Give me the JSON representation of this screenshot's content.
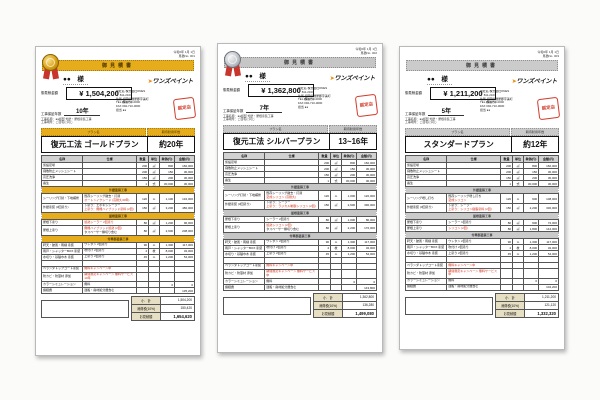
{
  "columns": [
    "名称",
    "仕様",
    "数量",
    "単位",
    "単価(円)",
    "金額(円)"
  ],
  "documents": [
    {
      "accent": "#e6ac1c",
      "accent_fg": "#4d3a05",
      "medal": "gold",
      "date_line": "令和6年 1月 1日",
      "no_line": "見積No. 001",
      "title": "御見積書",
      "customer": "●●　様",
      "logo_arrow": "➤",
      "logo": "ワンズペイント",
      "amount_label": "御見積金額",
      "amount": "¥ 1,504,200",
      "amount_note": "(税抜き)",
      "warranty_label": "工事保証年数",
      "warranty": "10年",
      "meta1": "工事名称：●●様邸 外壁・屋根塗装工事",
      "meta2": "工事場所：ご自宅に同じ",
      "company": [
        "会社名 株式会社ONES",
        "〒 811-2101",
        "住所 福岡県糟屋郡宇美町",
        "TEL 092-710-0000",
        "FAX 092-710-0000",
        "担当 ●●"
      ],
      "seal": "認定店",
      "plan_label": "プラン名",
      "life_label": "期待耐用年数",
      "plan": "復元工法 ゴールドプラン",
      "life": "約20年",
      "rows": [
        {
          "type": "item",
          "name": "仮設足場",
          "spec": [],
          "qty": "200",
          "unit": "㎡",
          "price": "800",
          "amt": "160,000"
        },
        {
          "type": "item",
          "name": "飛散防止メッシュシート",
          "spec": [],
          "qty": "200",
          "unit": "㎡",
          "price": "150",
          "amt": "30,000"
        },
        {
          "type": "item",
          "name": "高圧洗浄",
          "spec": [],
          "qty": "150",
          "unit": "㎡",
          "price": "200",
          "amt": "30,000"
        },
        {
          "type": "item",
          "name": "養生",
          "spec": [],
          "qty": "1",
          "unit": "式",
          "price": "30,000",
          "amt": "30,000"
        },
        {
          "type": "section",
          "name": "外壁塗装工事"
        },
        {
          "type": "item",
          "name": "シーリング打替・下地補修",
          "spec": [
            {
              "t": "既存シーリング撤去・打替",
              "r": false
            },
            {
              "t": "オートンイクシード (高耐久30年)",
              "r": true
            }
          ],
          "qty": "120",
          "unit": "m",
          "price": "1,100",
          "amt": "132,000"
        },
        {
          "type": "item",
          "name": "外壁塗装 (3回塗り)",
          "spec": [
            {
              "t": "下塗り：エポキシシーラー",
              "r": false
            },
            {
              "t": "上塗り：無機ハイブリッド塗料 (2回)",
              "r": true
            }
          ],
          "qty": "150",
          "unit": "㎡",
          "price": "3,200",
          "amt": "480,000"
        },
        {
          "type": "section",
          "name": "屋根塗装工事"
        },
        {
          "type": "item",
          "name": "屋根下塗り",
          "spec": [
            {
              "t": "遮熱シーラー 2回塗り",
              "r": true
            }
          ],
          "qty": "80",
          "unit": "㎡",
          "price": "1,200",
          "amt": "96,000"
        },
        {
          "type": "item",
          "name": "屋根上塗り",
          "spec": [
            {
              "t": "無機ハイブリッド遮熱 (2回)",
              "r": true
            },
            {
              "t": "タスペーサー縁切り含む",
              "r": false
            }
          ],
          "qty": "80",
          "unit": "㎡",
          "price": "2,600",
          "amt": "208,000"
        },
        {
          "type": "section",
          "name": "付帯部塗装工事"
        },
        {
          "type": "item",
          "name": "軒天・破風・雨樋 塗装",
          "spec": [
            {
              "t": "ウレタン 2回塗り",
              "r": false
            }
          ],
          "qty": "90",
          "unit": "m",
          "price": "1,300",
          "amt": "117,000"
        },
        {
          "type": "item",
          "name": "雨戸・シャッターBOX 塗装",
          "spec": [
            {
              "t": "吹付け 2回塗り",
              "r": false
            }
          ],
          "qty": "4",
          "unit": "枚",
          "price": "8,000",
          "amt": "32,000"
        },
        {
          "type": "item",
          "name": "水切り・基礎巾木 塗装",
          "spec": [
            {
              "t": "上塗り 2回塗り",
              "r": false
            }
          ],
          "qty": "45",
          "unit": "m",
          "price": "1,200",
          "amt": "54,000"
        },
        {
          "type": "blank"
        },
        {
          "type": "item",
          "name": "ベランダトップコート塗装",
          "spec": [
            {
              "t": "無料キャンペーン中",
              "r": true
            }
          ],
          "qty": "",
          "unit": "",
          "price": "",
          "amt": ""
        },
        {
          "type": "item",
          "name": "防カビ・防藻材 添加",
          "spec": [
            {
              "t": "期間限定キャンペーン 無料サービス 10年",
              "r": true
            }
          ],
          "qty": "",
          "unit": "",
          "price": "",
          "amt": ""
        },
        {
          "type": "item",
          "name": "カラーシミュレーション",
          "spec": [
            {
              "t": "無料",
              "r": false
            }
          ],
          "qty": "",
          "unit": "",
          "price": "0",
          "amt": "0"
        },
        {
          "type": "item",
          "name": "諸経費",
          "spec": [
            {
              "t": "運搬・廃材処分費含む",
              "r": false
            }
          ],
          "qty": "",
          "unit": "",
          "price": "",
          "amt": "135,200"
        }
      ],
      "totals": {
        "sub_label": "小　計",
        "sub": "1,504,200",
        "tax_label": "消費税(10%)",
        "tax": "150,420",
        "total_label": "お見積額",
        "total": "1,654,620"
      }
    },
    {
      "accent": "#c6c6c6",
      "accent_fg": "#3d3d3d",
      "medal": "silver",
      "date_line": "令和6年 1月 1日",
      "no_line": "見積No. 002",
      "title": "御見積書",
      "customer": "●●　様",
      "logo_arrow": "➤",
      "logo": "ワンズペイント",
      "amount_label": "御見積金額",
      "amount": "¥ 1,362,800",
      "amount_note": "(税抜き)",
      "warranty_label": "工事保証年数",
      "warranty": "7年",
      "meta1": "工事名称：●●様邸 外壁・屋根塗装工事",
      "meta2": "工事場所：ご自宅に同じ",
      "company": [
        "会社名 株式会社ONES",
        "〒 811-2101",
        "住所 福岡県糟屋郡宇美町",
        "TEL 092-710-0000",
        "FAX 092-710-0000",
        "担当 ●●"
      ],
      "seal": "認定店",
      "plan_label": "プラン名",
      "life_label": "期待耐用年数",
      "plan": "復元工法 シルバープラン",
      "life": "13~16年",
      "rows": [
        {
          "type": "item",
          "name": "仮設足場",
          "spec": [],
          "qty": "200",
          "unit": "㎡",
          "price": "800",
          "amt": "160,000"
        },
        {
          "type": "item",
          "name": "飛散防止メッシュシート",
          "spec": [],
          "qty": "200",
          "unit": "㎡",
          "price": "150",
          "amt": "30,000"
        },
        {
          "type": "item",
          "name": "高圧洗浄",
          "spec": [],
          "qty": "150",
          "unit": "㎡",
          "price": "200",
          "amt": "30,000"
        },
        {
          "type": "item",
          "name": "養生",
          "spec": [],
          "qty": "1",
          "unit": "式",
          "price": "30,000",
          "amt": "30,000"
        },
        {
          "type": "section",
          "name": "外壁塗装工事"
        },
        {
          "type": "item",
          "name": "シーリング打替・下地補修",
          "spec": [
            {
              "t": "既存シーリング撤去・打替",
              "r": false
            },
            {
              "t": "変成シリコン (高耐久)",
              "r": true
            }
          ],
          "qty": "120",
          "unit": "m",
          "price": "1,000",
          "amt": "120,000"
        },
        {
          "type": "item",
          "name": "外壁塗装 (3回塗り)",
          "spec": [
            {
              "t": "下塗り：シーラー",
              "r": false
            },
            {
              "t": "上塗り：ラジカル制御シリコン (2回)",
              "r": true
            }
          ],
          "qty": "150",
          "unit": "㎡",
          "price": "2,600",
          "amt": "390,000"
        },
        {
          "type": "section",
          "name": "屋根塗装工事"
        },
        {
          "type": "item",
          "name": "屋根下塗り",
          "spec": [
            {
              "t": "シーラー 2回塗り",
              "r": false
            }
          ],
          "qty": "80",
          "unit": "㎡",
          "price": "1,000",
          "amt": "80,000"
        },
        {
          "type": "item",
          "name": "屋根上塗り",
          "spec": [
            {
              "t": "遮熱シリコン (2回)",
              "r": true
            },
            {
              "t": "タスペーサー縁切り含む",
              "r": false
            }
          ],
          "qty": "80",
          "unit": "㎡",
          "price": "2,200",
          "amt": "176,000"
        },
        {
          "type": "section",
          "name": "付帯部塗装工事"
        },
        {
          "type": "item",
          "name": "軒天・破風・雨樋 塗装",
          "spec": [
            {
              "t": "ウレタン 2回塗り",
              "r": false
            }
          ],
          "qty": "90",
          "unit": "m",
          "price": "1,300",
          "amt": "117,000"
        },
        {
          "type": "item",
          "name": "雨戸・シャッターBOX 塗装",
          "spec": [
            {
              "t": "吹付け 2回塗り",
              "r": false
            }
          ],
          "qty": "4",
          "unit": "枚",
          "price": "8,000",
          "amt": "32,000"
        },
        {
          "type": "item",
          "name": "水切り・基礎巾木 塗装",
          "spec": [
            {
              "t": "上塗り 2回塗り",
              "r": false
            }
          ],
          "qty": "45",
          "unit": "m",
          "price": "1,200",
          "amt": "54,000"
        },
        {
          "type": "blank"
        },
        {
          "type": "item",
          "name": "ベランダトップコート塗装",
          "spec": [
            {
              "t": "無料キャンペーン中",
              "r": true
            }
          ],
          "qty": "",
          "unit": "",
          "price": "",
          "amt": ""
        },
        {
          "type": "item",
          "name": "防カビ・防藻材 添加",
          "spec": [
            {
              "t": "期間限定キャンペーン 無料サービス中",
              "r": true
            }
          ],
          "qty": "",
          "unit": "",
          "price": "",
          "amt": ""
        },
        {
          "type": "item",
          "name": "カラーシミュレーション",
          "spec": [
            {
              "t": "無料",
              "r": false
            }
          ],
          "qty": "",
          "unit": "",
          "price": "0",
          "amt": "0"
        },
        {
          "type": "item",
          "name": "諸経費",
          "spec": [
            {
              "t": "運搬・廃材処分費含む",
              "r": false
            }
          ],
          "qty": "",
          "unit": "",
          "price": "",
          "amt": "143,800"
        }
      ],
      "totals": {
        "sub_label": "小　計",
        "sub": "1,362,800",
        "tax_label": "消費税(10%)",
        "tax": "136,280",
        "total_label": "お見積額",
        "total": "1,499,080"
      }
    },
    {
      "accent": "#cbcbcb",
      "accent_fg": "#3d3d3d",
      "medal": "none",
      "date_line": "令和6年 1月 1日",
      "no_line": "見積No. 003",
      "title": "御見積書",
      "customer": "●●　様",
      "logo_arrow": "➤",
      "logo": "ワンズペイント",
      "amount_label": "御見積金額",
      "amount": "¥ 1,211,200",
      "amount_note": "(税抜き)",
      "warranty_label": "工事保証年数",
      "warranty": "5年",
      "meta1": "工事名称：●●様邸 外壁・屋根塗装工事",
      "meta2": "工事場所：ご自宅に同じ",
      "company": [
        "会社名 株式会社ONES",
        "〒 811-2101",
        "住所 福岡県糟屋郡宇美町",
        "TEL 092-710-0000",
        "FAX 092-710-0000",
        "担当 ●●"
      ],
      "seal": "認定店",
      "plan_label": "プラン名",
      "life_label": "期待耐用年数",
      "plan": "スタンダードプラン",
      "life": "約12年",
      "rows": [
        {
          "type": "item",
          "name": "仮設足場",
          "spec": [],
          "qty": "200",
          "unit": "㎡",
          "price": "800",
          "amt": "160,000"
        },
        {
          "type": "item",
          "name": "飛散防止メッシュシート",
          "spec": [],
          "qty": "200",
          "unit": "㎡",
          "price": "150",
          "amt": "30,000"
        },
        {
          "type": "item",
          "name": "高圧洗浄",
          "spec": [],
          "qty": "150",
          "unit": "㎡",
          "price": "200",
          "amt": "30,000"
        },
        {
          "type": "item",
          "name": "養生",
          "spec": [],
          "qty": "1",
          "unit": "式",
          "price": "30,000",
          "amt": "30,000"
        },
        {
          "type": "section",
          "name": "外壁塗装工事"
        },
        {
          "type": "item",
          "name": "シーリング増し打ち",
          "spec": [
            {
              "t": "既存シーリング増し打ち",
              "r": false
            },
            {
              "t": "変成シリコン",
              "r": true
            }
          ],
          "qty": "120",
          "unit": "m",
          "price": "900",
          "amt": "108,000"
        },
        {
          "type": "item",
          "name": "外壁塗装 (3回塗り)",
          "spec": [
            {
              "t": "下塗り：シーラー",
              "r": false
            },
            {
              "t": "上塗り：シリコン樹脂塗料 (2回)",
              "r": true
            }
          ],
          "qty": "150",
          "unit": "㎡",
          "price": "2,200",
          "amt": "330,000"
        },
        {
          "type": "section",
          "name": "屋根塗装工事"
        },
        {
          "type": "item",
          "name": "屋根下塗り",
          "spec": [
            {
              "t": "シーラー 1回塗り",
              "r": false
            }
          ],
          "qty": "80",
          "unit": "㎡",
          "price": "900",
          "amt": "72,000"
        },
        {
          "type": "item",
          "name": "屋根上塗り",
          "spec": [
            {
              "t": "シリコン (2回)",
              "r": true
            }
          ],
          "qty": "80",
          "unit": "㎡",
          "price": "1,800",
          "amt": "144,000"
        },
        {
          "type": "section",
          "name": "付帯部塗装工事"
        },
        {
          "type": "item",
          "name": "軒天・破風・雨樋 塗装",
          "spec": [
            {
              "t": "ウレタン 2回塗り",
              "r": false
            }
          ],
          "qty": "90",
          "unit": "m",
          "price": "1,300",
          "amt": "117,000"
        },
        {
          "type": "item",
          "name": "雨戸・シャッターBOX 塗装",
          "spec": [
            {
              "t": "吹付け 2回塗り",
              "r": false
            }
          ],
          "qty": "4",
          "unit": "枚",
          "price": "8,000",
          "amt": "32,000"
        },
        {
          "type": "item",
          "name": "水切り・基礎巾木 塗装",
          "spec": [
            {
              "t": "上塗り 2回塗り",
              "r": false
            }
          ],
          "qty": "45",
          "unit": "m",
          "price": "1,200",
          "amt": "54,000"
        },
        {
          "type": "blank"
        },
        {
          "type": "item",
          "name": "ベランダトップコート塗装",
          "spec": [
            {
              "t": "無料キャンペーン中",
              "r": true
            }
          ],
          "qty": "",
          "unit": "",
          "price": "",
          "amt": ""
        },
        {
          "type": "item",
          "name": "防カビ・防藻材 添加",
          "spec": [
            {
              "t": "期間限定キャンペーン 無料サービス中",
              "r": true
            }
          ],
          "qty": "",
          "unit": "",
          "price": "",
          "amt": ""
        },
        {
          "type": "item",
          "name": "カラーシミュレーション",
          "spec": [
            {
              "t": "無料",
              "r": false
            }
          ],
          "qty": "",
          "unit": "",
          "price": "0",
          "amt": "0"
        },
        {
          "type": "item",
          "name": "諸経費",
          "spec": [
            {
              "t": "運搬・廃材処分費含む",
              "r": false
            }
          ],
          "qty": "",
          "unit": "",
          "price": "",
          "amt": "104,200"
        }
      ],
      "totals": {
        "sub_label": "小　計",
        "sub": "1,211,200",
        "tax_label": "消費税(10%)",
        "tax": "121,120",
        "total_label": "お見積額",
        "total": "1,332,320"
      }
    }
  ]
}
